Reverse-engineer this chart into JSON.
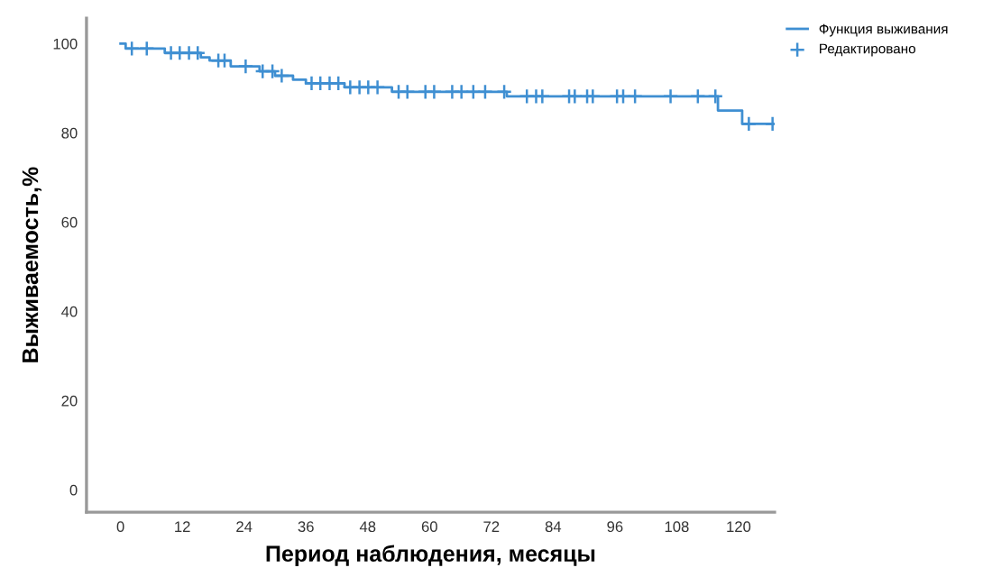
{
  "chart_data": {
    "type": "step",
    "xlabel": "Период наблюдения, месяцы",
    "ylabel": "Выживаемость,%",
    "xlim": [
      -6.6,
      127
    ],
    "ylim": [
      -5,
      105.7
    ],
    "xticks": [
      0,
      12,
      24,
      36,
      48,
      60,
      72,
      84,
      96,
      108,
      120
    ],
    "yticks": [
      0,
      20,
      40,
      60,
      80,
      100
    ],
    "grid": false,
    "legend": "top right",
    "line_style": "solid",
    "series": [
      {
        "name": "Функция выживания",
        "color": "#3f8fd2",
        "marker": "none",
        "x": [
          0,
          1,
          8.6,
          15.6,
          17.3,
          21.4,
          27,
          30,
          33.5,
          36,
          43.5,
          52.7,
          75,
          116,
          120.7,
          126.8
        ],
        "values": [
          100,
          98.9,
          97.9,
          96.9,
          96.2,
          94.9,
          93.8,
          92.8,
          91.9,
          91.1,
          90.2,
          89.2,
          88.2,
          85,
          82,
          82
        ]
      },
      {
        "name": "Редактировано",
        "type": "scatter",
        "color": "#3f8fd2",
        "marker": "cross",
        "x": [
          2.2,
          5.1,
          9.8,
          11.5,
          13.3,
          15,
          19,
          20.2,
          24.3,
          27.6,
          29.5,
          31.3,
          37.1,
          38.8,
          40.6,
          42.3,
          44.6,
          46.4,
          48.1,
          49.9,
          54,
          55.7,
          59.2,
          60.9,
          64.4,
          66.2,
          68.5,
          70.8,
          74.5,
          78.9,
          80.7,
          81.9,
          87.1,
          88.2,
          90.6,
          91.7,
          96.4,
          97.6,
          99.9,
          106.8,
          112.1,
          115.5,
          122,
          126.6
        ],
        "values": [
          98.9,
          98.9,
          97.9,
          97.9,
          97.9,
          97.9,
          96.2,
          96.2,
          94.9,
          93.8,
          93.8,
          92.8,
          91.1,
          91.1,
          91.1,
          91.1,
          90.2,
          90.2,
          90.2,
          90.2,
          89.2,
          89.2,
          89.2,
          89.2,
          89.2,
          89.2,
          89.2,
          89.2,
          89.2,
          88.2,
          88.2,
          88.2,
          88.2,
          88.2,
          88.2,
          88.2,
          88.2,
          88.2,
          88.2,
          88.2,
          88.2,
          88.2,
          82,
          82
        ]
      }
    ]
  }
}
